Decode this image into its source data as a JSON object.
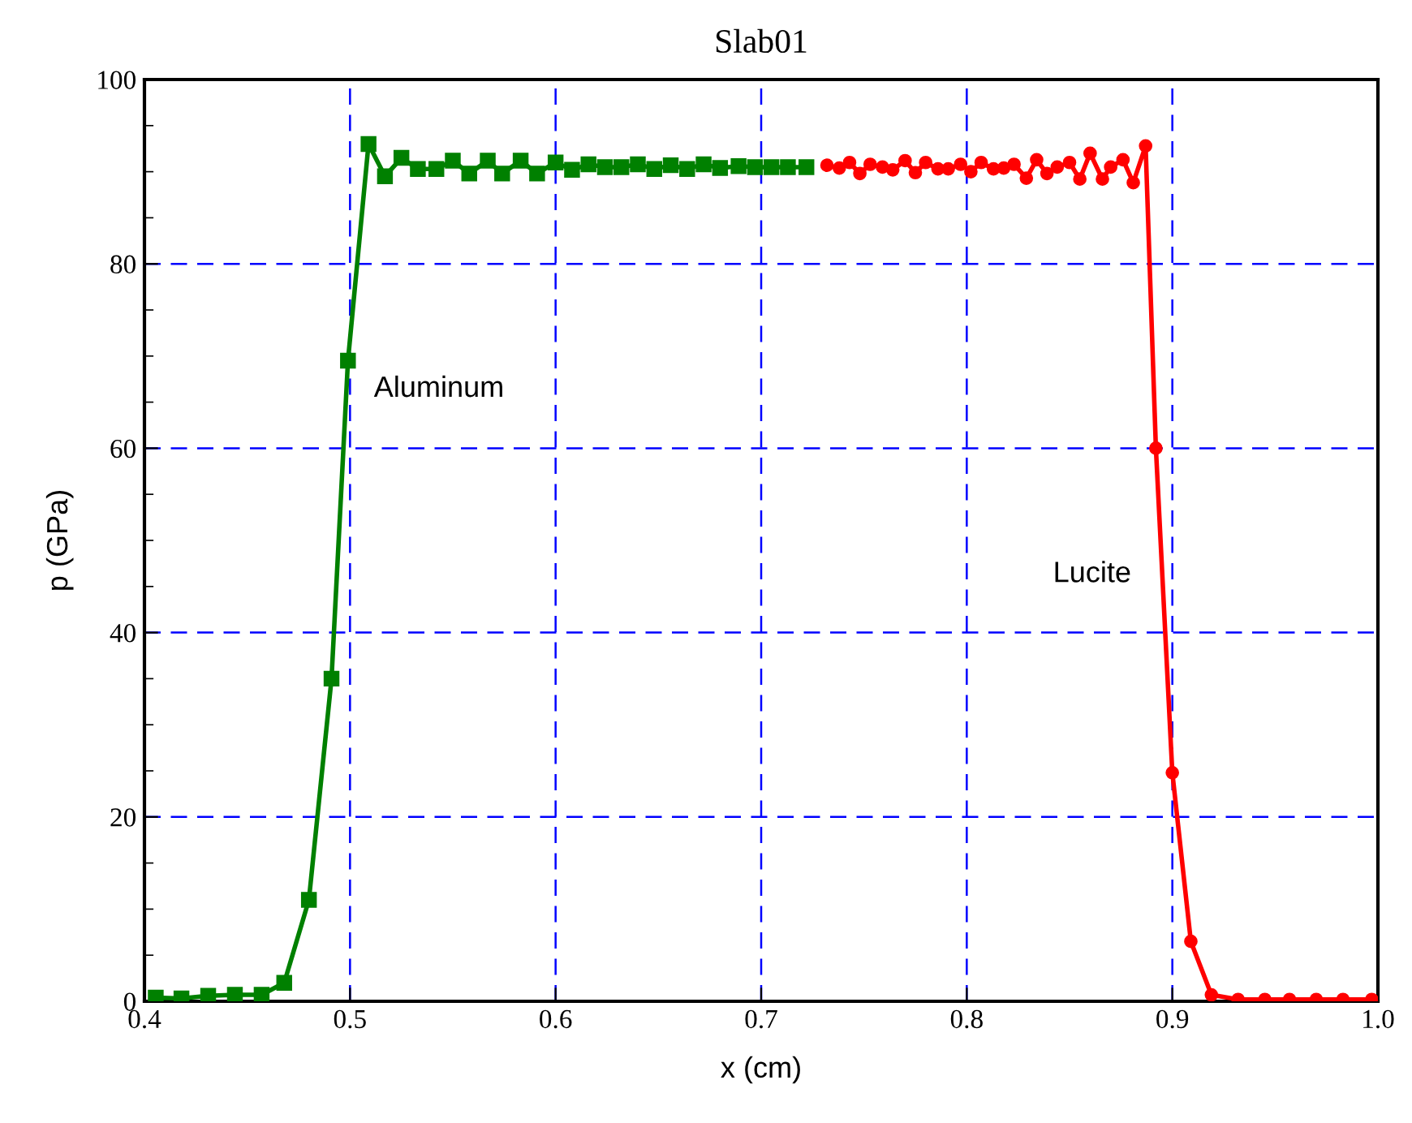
{
  "chart_data": {
    "type": "line",
    "title": "Slab01",
    "xlabel": "x (cm)",
    "ylabel": "p (GPa)",
    "xlim": [
      0.4,
      1.0
    ],
    "xticks": [
      {
        "value": 0.4,
        "label": "0.4"
      },
      {
        "value": 0.5,
        "label": "0.5"
      },
      {
        "value": 0.6,
        "label": "0.6"
      },
      {
        "value": 0.7,
        "label": "0.7"
      },
      {
        "value": 0.8,
        "label": "0.8"
      },
      {
        "value": 0.9,
        "label": "0.9"
      },
      {
        "value": 1.0,
        "label": "1.0"
      }
    ],
    "ylim": [
      0,
      100
    ],
    "yticks": [
      0,
      20,
      40,
      60,
      80,
      100
    ],
    "grid": true,
    "legend": false,
    "series": [
      {
        "name": "Aluminum",
        "color": "#008000",
        "marker": "square",
        "x": [
          0.4055,
          0.418,
          0.431,
          0.444,
          0.457,
          0.468,
          0.48,
          0.491,
          0.499,
          0.509,
          0.517,
          0.525,
          0.533,
          0.542,
          0.55,
          0.558,
          0.567,
          0.574,
          0.583,
          0.591,
          0.6,
          0.608,
          0.616,
          0.624,
          0.632,
          0.64,
          0.648,
          0.656,
          0.664,
          0.672,
          0.68,
          0.689,
          0.697,
          0.705,
          0.713,
          0.722
        ],
        "values": [
          0.4,
          0.3,
          0.6,
          0.7,
          0.7,
          2,
          11,
          35,
          69.5,
          93,
          89.5,
          91.5,
          90.3,
          90.3,
          91.2,
          89.8,
          91.2,
          89.8,
          91.2,
          89.8,
          91,
          90.2,
          90.8,
          90.5,
          90.5,
          90.8,
          90.3,
          90.7,
          90.3,
          90.8,
          90.4,
          90.6,
          90.5,
          90.5,
          90.5,
          90.5
        ]
      },
      {
        "name": "Lucite",
        "color": "#ff0000",
        "marker": "circle",
        "x": [
          0.732,
          0.738,
          0.743,
          0.748,
          0.753,
          0.759,
          0.764,
          0.77,
          0.775,
          0.78,
          0.786,
          0.791,
          0.797,
          0.802,
          0.807,
          0.813,
          0.818,
          0.823,
          0.829,
          0.834,
          0.839,
          0.844,
          0.85,
          0.855,
          0.86,
          0.866,
          0.87,
          0.876,
          0.881,
          0.887,
          0.892,
          0.9,
          0.909,
          0.919,
          0.932,
          0.945,
          0.957,
          0.97,
          0.983,
          0.997
        ],
        "values": [
          90.7,
          90.4,
          91,
          89.8,
          90.8,
          90.5,
          90.2,
          91.2,
          89.9,
          91,
          90.3,
          90.3,
          90.8,
          90,
          91,
          90.3,
          90.4,
          90.8,
          89.3,
          91.3,
          89.8,
          90.5,
          91,
          89.2,
          92,
          89.2,
          90.5,
          91.3,
          88.8,
          92.8,
          60,
          24.8,
          6.5,
          0.7,
          0.2,
          0.2,
          0.2,
          0.2,
          0.2,
          0.2
        ]
      }
    ]
  }
}
